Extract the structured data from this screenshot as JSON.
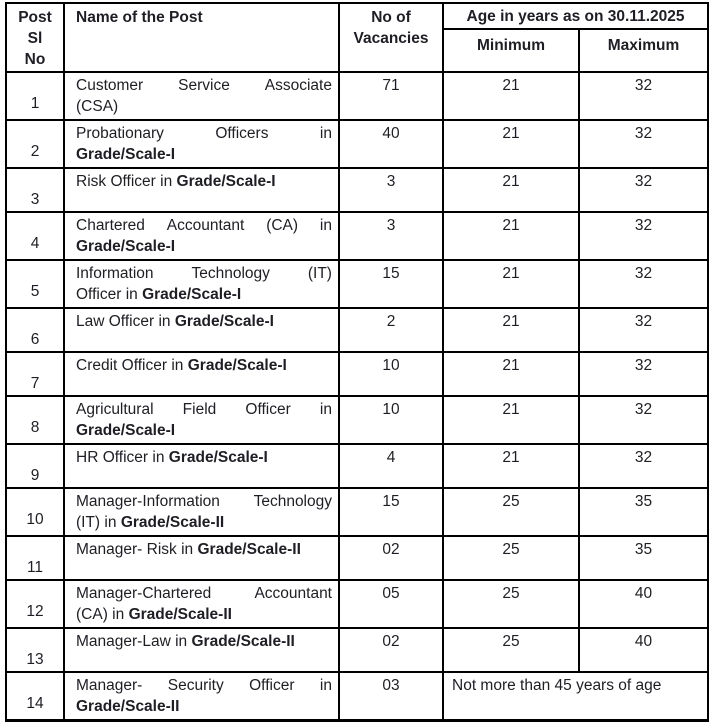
{
  "colors": {
    "background": "#ffffff",
    "border": "#000000",
    "text": "#1e1e24"
  },
  "table": {
    "header": {
      "sl_lines": [
        "Post",
        "Sl",
        "No"
      ],
      "name": "Name of the Post",
      "vac_lines": [
        "No of",
        "Vacancies"
      ],
      "age": "Age in years as on 30.11.2025",
      "min": "Minimum",
      "max": "Maximum"
    },
    "rows": [
      {
        "sl": "1",
        "name": [
          {
            "j": 1,
            "w": [
              [
                "Customer",
                0
              ],
              [
                "Service",
                0
              ],
              [
                "Associate",
                0
              ]
            ]
          },
          {
            "j": 0,
            "w": [
              [
                "(CSA)",
                0
              ]
            ]
          }
        ],
        "vac": "71",
        "min": "21",
        "max": "32"
      },
      {
        "sl": "2",
        "name": [
          {
            "j": 1,
            "w": [
              [
                "Probationary",
                0
              ],
              [
                "Officers",
                0
              ],
              [
                "in",
                0
              ]
            ]
          },
          {
            "j": 0,
            "w": [
              [
                "Grade/Scale-I",
                1
              ]
            ]
          }
        ],
        "vac": "40",
        "min": "21",
        "max": "32"
      },
      {
        "sl": "3",
        "name": [
          {
            "j": 0,
            "w": [
              [
                "Risk",
                0
              ],
              [
                "Officer",
                0
              ],
              [
                "in",
                0
              ],
              [
                "Grade/Scale-I",
                1
              ]
            ]
          }
        ],
        "vac": "3",
        "min": "21",
        "max": "32"
      },
      {
        "sl": "4",
        "name": [
          {
            "j": 1,
            "w": [
              [
                "Chartered",
                0
              ],
              [
                "Accountant",
                0
              ],
              [
                "(CA)",
                0
              ],
              [
                "in",
                0
              ]
            ]
          },
          {
            "j": 0,
            "w": [
              [
                "Grade/Scale-I",
                1
              ]
            ]
          }
        ],
        "vac": "3",
        "min": "21",
        "max": "32"
      },
      {
        "sl": "5",
        "name": [
          {
            "j": 1,
            "w": [
              [
                "Information",
                0
              ],
              [
                "Technology",
                0
              ],
              [
                "(IT)",
                0
              ]
            ]
          },
          {
            "j": 0,
            "w": [
              [
                "Officer",
                0
              ],
              [
                "in",
                0
              ],
              [
                "Grade/Scale-I",
                1
              ]
            ]
          }
        ],
        "vac": "15",
        "min": "21",
        "max": "32"
      },
      {
        "sl": "6",
        "name": [
          {
            "j": 0,
            "w": [
              [
                "Law",
                0
              ],
              [
                "Officer",
                0
              ],
              [
                "in",
                0
              ],
              [
                "Grade/Scale-I",
                1
              ]
            ]
          }
        ],
        "vac": "2",
        "min": "21",
        "max": "32"
      },
      {
        "sl": "7",
        "name": [
          {
            "j": 0,
            "w": [
              [
                "Credit",
                0
              ],
              [
                "Officer",
                0
              ],
              [
                "in",
                0
              ],
              [
                "Grade/Scale-I",
                1
              ]
            ]
          }
        ],
        "vac": "10",
        "min": "21",
        "max": "32"
      },
      {
        "sl": "8",
        "name": [
          {
            "j": 1,
            "w": [
              [
                "Agricultural",
                0
              ],
              [
                "Field",
                0
              ],
              [
                "Officer",
                0
              ],
              [
                "in",
                0
              ]
            ]
          },
          {
            "j": 0,
            "w": [
              [
                "Grade/Scale-I",
                1
              ]
            ]
          }
        ],
        "vac": "10",
        "min": "21",
        "max": "32"
      },
      {
        "sl": "9",
        "name": [
          {
            "j": 0,
            "w": [
              [
                "HR",
                0
              ],
              [
                "Officer",
                0
              ],
              [
                "in",
                0
              ],
              [
                "Grade/Scale-I",
                1
              ]
            ]
          }
        ],
        "vac": "4",
        "min": "21",
        "max": "32"
      },
      {
        "sl": "10",
        "name": [
          {
            "j": 1,
            "w": [
              [
                "Manager-Information",
                0
              ],
              [
                "Technology",
                0
              ]
            ]
          },
          {
            "j": 0,
            "w": [
              [
                "(IT)",
                0
              ],
              [
                "in",
                0
              ],
              [
                "Grade/Scale-II",
                1
              ]
            ]
          }
        ],
        "vac": "15",
        "min": "25",
        "max": "35"
      },
      {
        "sl": "11",
        "name": [
          {
            "j": 0,
            "w": [
              [
                "Manager-",
                0
              ],
              [
                "Risk",
                0
              ],
              [
                "in",
                0
              ],
              [
                "Grade/Scale-II",
                1
              ]
            ]
          }
        ],
        "vac": "02",
        "min": "25",
        "max": "35"
      },
      {
        "sl": "12",
        "name": [
          {
            "j": 1,
            "w": [
              [
                "Manager-Chartered",
                0
              ],
              [
                "Accountant",
                0
              ]
            ]
          },
          {
            "j": 0,
            "w": [
              [
                "(CA)",
                0
              ],
              [
                "in",
                0
              ],
              [
                "Grade/Scale-II",
                1
              ]
            ]
          }
        ],
        "vac": "05",
        "min": "25",
        "max": "40"
      },
      {
        "sl": "13",
        "name": [
          {
            "j": 0,
            "w": [
              [
                "Manager-Law",
                0
              ],
              [
                "in",
                0
              ],
              [
                "Grade/Scale-II",
                1
              ]
            ]
          }
        ],
        "vac": "02",
        "min": "25",
        "max": "40"
      },
      {
        "sl": "14",
        "name": [
          {
            "j": 1,
            "w": [
              [
                "Manager-",
                0
              ],
              [
                "Security",
                0
              ],
              [
                "Officer",
                0
              ],
              [
                "in",
                0
              ]
            ]
          },
          {
            "j": 0,
            "w": [
              [
                "Grade/Scale-II",
                1
              ]
            ]
          }
        ],
        "vac": "03",
        "age_note": "Not more than 45 years of age"
      }
    ]
  }
}
